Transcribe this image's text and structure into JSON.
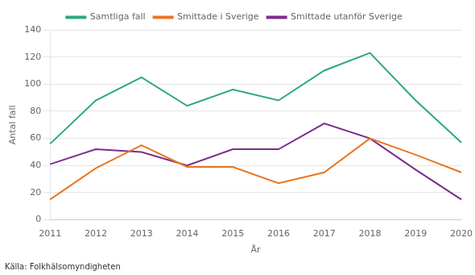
{
  "chart_data": {
    "type": "line",
    "categories": [
      "2011",
      "2012",
      "2013",
      "2014",
      "2015",
      "2016",
      "2017",
      "2018",
      "2019",
      "2020"
    ],
    "series": [
      {
        "name": "Samtliga fall",
        "color": "#2ca87f",
        "values": [
          56,
          88,
          105,
          84,
          96,
          88,
          110,
          123,
          88,
          57
        ]
      },
      {
        "name": "Smittade i Sverige",
        "color": "#e87722",
        "values": [
          15,
          38,
          55,
          39,
          39,
          27,
          35,
          60,
          48,
          35
        ]
      },
      {
        "name": "Smittade utanför Sverige",
        "color": "#7b2d8b",
        "values": [
          41,
          52,
          50,
          40,
          52,
          52,
          71,
          60,
          37,
          15
        ]
      }
    ],
    "y_label": "Antal fall",
    "x_label": "År",
    "annotations": [
      "Källa: Folkhälsomyndigheten"
    ],
    "ylim": [
      0,
      140
    ],
    "yticks": [
      0,
      20,
      40,
      60,
      80,
      100,
      120,
      140
    ],
    "grid": "y",
    "legend": "top",
    "marker": "none"
  }
}
